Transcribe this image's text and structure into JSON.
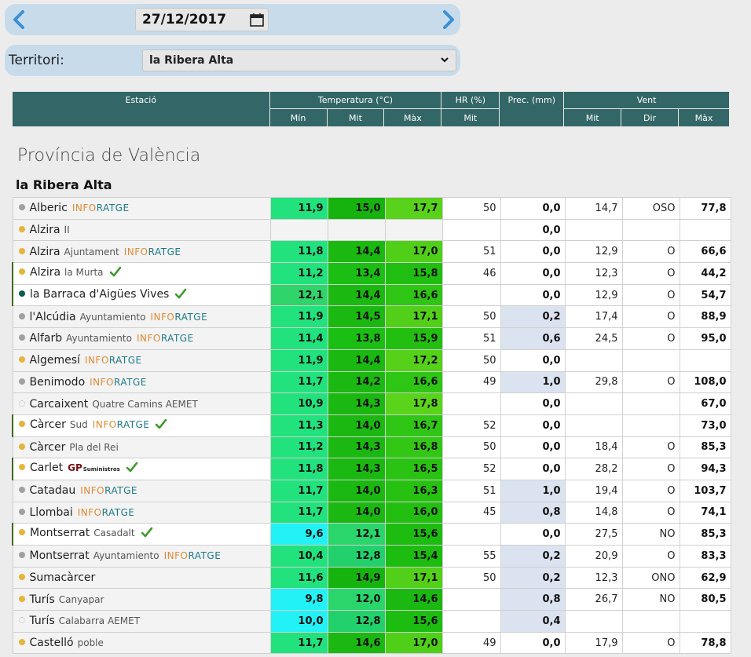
{
  "date": {
    "value": "27/12/2017"
  },
  "territory": {
    "label": "Territori:",
    "selected": "la Ribera Alta"
  },
  "header": {
    "estacio": "Estació",
    "temperatura": "Temperatura (°C)",
    "hr": "HR (%)",
    "prec": "Prec. (mm)",
    "vent": "Vent",
    "min": "Mín",
    "mit_t": "Mit",
    "max_t": "Màx",
    "mit_hr": "Mit",
    "mit_v": "Mit",
    "dir": "Dir",
    "max_v": "Màx"
  },
  "province": "Província de València",
  "region": "la Ribera Alta",
  "colors": {
    "accent": "#336666",
    "check": "#3a9a28",
    "prec_highlight": "#dbe3f1"
  },
  "rows": [
    {
      "name": "Alberic",
      "sub": "",
      "brand": "INFORATGE",
      "gp": false,
      "check": false,
      "dot": "#a0a0a0",
      "dot_style": "solid",
      "hl": false,
      "min": "11,9",
      "mit": "15,0",
      "max": "17,7",
      "min_bg": "#22e27d",
      "mit_bg": "#16b30e",
      "max_bg": "#58d21a",
      "hr": "50",
      "prec": "0,0",
      "prec_blue": false,
      "vmit": "14,7",
      "dir": "OSO",
      "vmax": "77,8"
    },
    {
      "name": "Alzira",
      "sub": "II",
      "brand": "",
      "gp": false,
      "check": false,
      "dot": "#e5b43a",
      "dot_style": "solid",
      "hl": false,
      "min": "",
      "mit": "",
      "max": "",
      "min_bg": "#f3f3f3",
      "mit_bg": "#f3f3f3",
      "max_bg": "#f3f3f3",
      "hr": "",
      "prec": "0,0",
      "prec_blue": false,
      "vmit": "",
      "dir": "",
      "vmax": ""
    },
    {
      "name": "Alzira",
      "sub": "Ajuntament",
      "brand": "INFORATGE",
      "gp": false,
      "check": false,
      "dot": "#e5b43a",
      "dot_style": "solid",
      "hl": false,
      "min": "11,8",
      "mit": "14,4",
      "max": "17,0",
      "min_bg": "#22e27d",
      "mit_bg": "#1ab810",
      "max_bg": "#4fcf18",
      "hr": "51",
      "prec": "0,0",
      "prec_blue": false,
      "vmit": "12,9",
      "dir": "O",
      "vmax": "66,6"
    },
    {
      "name": "Alzira",
      "sub": "la Murta",
      "brand": "",
      "gp": false,
      "check": true,
      "dot": "#e5b43a",
      "dot_style": "solid",
      "hl": true,
      "min": "11,2",
      "mit": "13,4",
      "max": "15,8",
      "min_bg": "#22e27d",
      "mit_bg": "#1bbf14",
      "max_bg": "#20be10",
      "hr": "46",
      "prec": "0,0",
      "prec_blue": false,
      "vmit": "12,3",
      "dir": "O",
      "vmax": "44,2"
    },
    {
      "name": "la Barraca d'Aigües Vives",
      "sub": "",
      "brand": "",
      "gp": false,
      "check": true,
      "dot": "#0d5a52",
      "dot_style": "solid",
      "hl": true,
      "min": "12,1",
      "mit": "14,4",
      "max": "16,6",
      "min_bg": "#2fd56a",
      "mit_bg": "#1ab810",
      "max_bg": "#2ec514",
      "hr": "",
      "prec": "0,0",
      "prec_blue": false,
      "vmit": "12,9",
      "dir": "O",
      "vmax": "54,7"
    },
    {
      "name": "l'Alcúdia",
      "sub": "Ayuntamiento",
      "brand": "INFORATGE",
      "gp": false,
      "check": false,
      "dot": "#a0a0a0",
      "dot_style": "solid",
      "hl": false,
      "min": "11,9",
      "mit": "14,5",
      "max": "17,1",
      "min_bg": "#22e27d",
      "mit_bg": "#1ab810",
      "max_bg": "#52d019",
      "hr": "50",
      "prec": "0,2",
      "prec_blue": true,
      "vmit": "17,4",
      "dir": "O",
      "vmax": "88,9"
    },
    {
      "name": "Alfarb",
      "sub": "Ayuntamiento",
      "brand": "INFORATGE",
      "gp": false,
      "check": false,
      "dot": "#a0a0a0",
      "dot_style": "solid",
      "hl": false,
      "min": "11,4",
      "mit": "13,8",
      "max": "15,9",
      "min_bg": "#22e27d",
      "mit_bg": "#1bbf14",
      "max_bg": "#22bf11",
      "hr": "51",
      "prec": "0,6",
      "prec_blue": true,
      "vmit": "24,5",
      "dir": "O",
      "vmax": "95,0"
    },
    {
      "name": "Algemesí",
      "sub": "",
      "brand": "INFORATGE",
      "gp": false,
      "check": false,
      "dot": "#e5b43a",
      "dot_style": "solid",
      "hl": false,
      "min": "11,9",
      "mit": "14,4",
      "max": "17,2",
      "min_bg": "#22e27d",
      "mit_bg": "#1ab810",
      "max_bg": "#55d11a",
      "hr": "50",
      "prec": "0,0",
      "prec_blue": false,
      "vmit": "",
      "dir": "",
      "vmax": ""
    },
    {
      "name": "Benimodo",
      "sub": "",
      "brand": "INFORATGE",
      "gp": false,
      "check": false,
      "dot": "#a0a0a0",
      "dot_style": "solid",
      "hl": false,
      "min": "11,7",
      "mit": "14,2",
      "max": "16,6",
      "min_bg": "#22e27d",
      "mit_bg": "#1ab810",
      "max_bg": "#2ec514",
      "hr": "49",
      "prec": "1,0",
      "prec_blue": true,
      "vmit": "29,8",
      "dir": "O",
      "vmax": "108,0"
    },
    {
      "name": "Carcaixent",
      "sub": "Quatre Camins AEMET",
      "brand": "",
      "gp": false,
      "check": false,
      "dot": "#bbbbbb",
      "dot_style": "dotted",
      "hl": false,
      "min": "10,9",
      "mit": "14,3",
      "max": "17,8",
      "min_bg": "#22e27d",
      "mit_bg": "#1ab810",
      "max_bg": "#5ad41b",
      "hr": "",
      "prec": "0,0",
      "prec_blue": false,
      "vmit": "",
      "dir": "",
      "vmax": "67,0"
    },
    {
      "name": "Càrcer",
      "sub": "Sud",
      "brand": "INFORATGE",
      "gp": false,
      "check": true,
      "dot": "#e5b43a",
      "dot_style": "solid",
      "hl": true,
      "min": "11,3",
      "mit": "14,0",
      "max": "16,7",
      "min_bg": "#22e27d",
      "mit_bg": "#1ab810",
      "max_bg": "#30c615",
      "hr": "52",
      "prec": "0,0",
      "prec_blue": false,
      "vmit": "",
      "dir": "",
      "vmax": "73,0"
    },
    {
      "name": "Càrcer",
      "sub": "Pla del Rei",
      "brand": "",
      "gp": false,
      "check": false,
      "dot": "#e5b43a",
      "dot_style": "solid",
      "hl": false,
      "min": "11,2",
      "mit": "14,3",
      "max": "16,8",
      "min_bg": "#22e27d",
      "mit_bg": "#1ab810",
      "max_bg": "#33c715",
      "hr": "50",
      "prec": "0,0",
      "prec_blue": false,
      "vmit": "18,4",
      "dir": "O",
      "vmax": "85,3"
    },
    {
      "name": "Carlet",
      "sub": "",
      "brand": "",
      "gp": true,
      "gp_main": "GP",
      "gp_small": "Suministros",
      "check": true,
      "dot": "#e5b43a",
      "dot_style": "solid",
      "hl": true,
      "min": "11,8",
      "mit": "14,3",
      "max": "16,5",
      "min_bg": "#22e27d",
      "mit_bg": "#1ab810",
      "max_bg": "#2bc313",
      "hr": "52",
      "prec": "0,0",
      "prec_blue": false,
      "vmit": "28,2",
      "dir": "O",
      "vmax": "94,3"
    },
    {
      "name": "Catadau",
      "sub": "",
      "brand": "INFORATGE",
      "gp": false,
      "check": false,
      "dot": "#a0a0a0",
      "dot_style": "solid",
      "hl": false,
      "min": "11,7",
      "mit": "14,0",
      "max": "16,3",
      "min_bg": "#22e27d",
      "mit_bg": "#1ab810",
      "max_bg": "#27c112",
      "hr": "51",
      "prec": "1,0",
      "prec_blue": true,
      "vmit": "19,4",
      "dir": "O",
      "vmax": "103,7"
    },
    {
      "name": "Llombai",
      "sub": "",
      "brand": "INFORATGE",
      "gp": false,
      "check": false,
      "dot": "#a0a0a0",
      "dot_style": "solid",
      "hl": false,
      "min": "11,7",
      "mit": "14,0",
      "max": "16,0",
      "min_bg": "#22e27d",
      "mit_bg": "#1ab810",
      "max_bg": "#22bf11",
      "hr": "45",
      "prec": "0,8",
      "prec_blue": true,
      "vmit": "14,8",
      "dir": "O",
      "vmax": "74,1"
    },
    {
      "name": "Montserrat",
      "sub": "Casadalt",
      "brand": "",
      "gp": false,
      "check": true,
      "dot": "#e5b43a",
      "dot_style": "solid",
      "hl": true,
      "min": "9,6",
      "mit": "12,1",
      "max": "15,6",
      "min_bg": "#22f2f5",
      "mit_bg": "#2ad56b",
      "max_bg": "#1cbc10",
      "hr": "",
      "prec": "0,0",
      "prec_blue": false,
      "vmit": "27,5",
      "dir": "NO",
      "vmax": "85,3"
    },
    {
      "name": "Montserrat",
      "sub": "Ayuntamiento",
      "brand": "INFORATGE",
      "gp": false,
      "check": false,
      "dot": "#a0a0a0",
      "dot_style": "solid",
      "hl": false,
      "min": "10,4",
      "mit": "12,8",
      "max": "15,4",
      "min_bg": "#22e27d",
      "mit_bg": "#22d06c",
      "max_bg": "#1cbc10",
      "hr": "55",
      "prec": "0,2",
      "prec_blue": true,
      "vmit": "20,9",
      "dir": "O",
      "vmax": "83,3"
    },
    {
      "name": "Sumacàrcer",
      "sub": "",
      "brand": "",
      "gp": false,
      "check": false,
      "dot": "#e5b43a",
      "dot_style": "solid",
      "hl": false,
      "min": "11,6",
      "mit": "14,9",
      "max": "17,1",
      "min_bg": "#22e27d",
      "mit_bg": "#16b30e",
      "max_bg": "#52d019",
      "hr": "50",
      "prec": "0,2",
      "prec_blue": true,
      "vmit": "12,3",
      "dir": "ONO",
      "vmax": "62,9"
    },
    {
      "name": "Turís",
      "sub": "Canyapar",
      "brand": "",
      "gp": false,
      "check": false,
      "dot": "#e5b43a",
      "dot_style": "solid",
      "hl": false,
      "min": "9,8",
      "mit": "12,0",
      "max": "14,6",
      "min_bg": "#22f2f5",
      "mit_bg": "#2ad56b",
      "max_bg": "#1ab810",
      "hr": "",
      "prec": "0,8",
      "prec_blue": true,
      "vmit": "26,7",
      "dir": "NO",
      "vmax": "80,5"
    },
    {
      "name": "Turís",
      "sub": "Calabarra AEMET",
      "brand": "",
      "gp": false,
      "check": false,
      "dot": "#bbbbbb",
      "dot_style": "dotted",
      "hl": false,
      "min": "10,0",
      "mit": "12,8",
      "max": "15,6",
      "min_bg": "#22f2f5",
      "mit_bg": "#22d06c",
      "max_bg": "#1cbc10",
      "hr": "",
      "prec": "0,4",
      "prec_blue": true,
      "vmit": "",
      "dir": "",
      "vmax": ""
    },
    {
      "name": "Castelló",
      "sub": "poble",
      "brand": "",
      "gp": false,
      "check": false,
      "dot": "#e5b43a",
      "dot_style": "solid",
      "hl": false,
      "min": "11,7",
      "mit": "14,6",
      "max": "17,0",
      "min_bg": "#22e27d",
      "mit_bg": "#1ab810",
      "max_bg": "#4fcf18",
      "hr": "49",
      "prec": "0,0",
      "prec_blue": false,
      "vmit": "17,9",
      "dir": "O",
      "vmax": "78,8"
    }
  ]
}
